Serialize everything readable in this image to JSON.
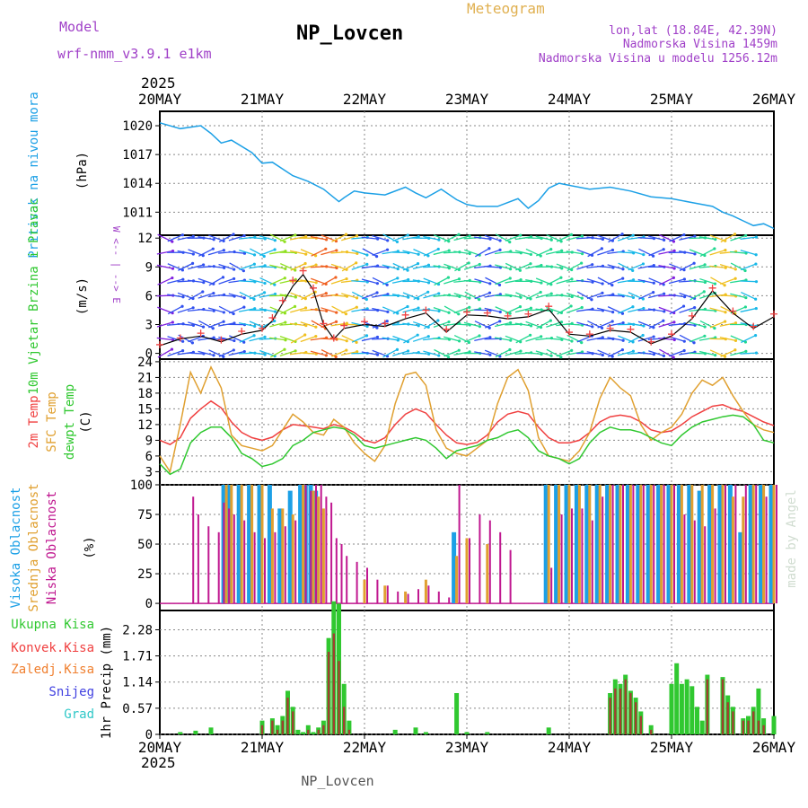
{
  "header": {
    "model_label": "Model",
    "model_name": "wrf-nmm_v3.9.1 e1km",
    "title": "NP_Lovcen",
    "subtitle": "Meteogram",
    "location": "lon,lat (18.84E, 42.39N)",
    "altitude": "Nadmorska Visina 1459m",
    "model_altitude": "Nadmorska Visina u modelu 1256.12m",
    "year_top": "2025",
    "footer_station": "NP_Lovcen",
    "watermark": "made by Angel"
  },
  "colors": {
    "pressure": "#1ca0e6",
    "temp2m": "#f04040",
    "sfc_temp": "#e0a030",
    "dewpt": "#30c830",
    "cloud_high": "#1ca0e6",
    "cloud_mid": "#e0a030",
    "cloud_low": "#c01890",
    "precip_total": "#30c830",
    "precip_conv": "#f04040",
    "text_purple": "#a040c8",
    "text_gold": "#e0b050"
  },
  "chart_data": [
    {
      "type": "line",
      "panel": "pressure",
      "ylabel": "Pritisak na nivou mora",
      "unit": "(hPa)",
      "ylim": [
        1008.6,
        1021.5
      ],
      "yticks": [
        1011,
        1014,
        1017,
        1020
      ],
      "x_day": [
        0,
        0.2,
        0.4,
        0.5,
        0.6,
        0.7,
        0.9,
        1.0,
        1.1,
        1.3,
        1.45,
        1.6,
        1.75,
        1.8,
        1.9,
        2.0,
        2.2,
        2.4,
        2.5,
        2.6,
        2.75,
        2.9,
        3.0,
        3.1,
        3.3,
        3.5,
        3.6,
        3.7,
        3.8,
        3.9,
        4.0,
        4.2,
        4.4,
        4.6,
        4.8,
        5.0,
        5.2,
        5.4,
        5.5,
        5.6,
        5.7,
        5.8,
        5.9,
        6.0
      ],
      "values": [
        1020.3,
        1019.7,
        1020.0,
        1019.2,
        1018.2,
        1018.5,
        1017.2,
        1016.1,
        1016.2,
        1014.8,
        1014.2,
        1013.4,
        1012.1,
        1012.5,
        1013.2,
        1013.0,
        1012.8,
        1013.6,
        1013.0,
        1012.5,
        1013.4,
        1012.3,
        1011.8,
        1011.6,
        1011.6,
        1012.4,
        1011.4,
        1012.2,
        1013.5,
        1014.0,
        1013.8,
        1013.4,
        1013.6,
        1013.2,
        1012.6,
        1012.4,
        1012.0,
        1011.6,
        1011.0,
        1010.6,
        1010.1,
        1009.6,
        1009.8,
        1009.3
      ]
    },
    {
      "type": "line",
      "panel": "wind",
      "ylabel": "10m Vjetar Brzina i Pravac",
      "unit": "(m/s)",
      "compass": "W <-- | --> E",
      "ylim": [
        -0.6,
        12.3
      ],
      "yticks": [
        0,
        3,
        6,
        9,
        12
      ],
      "x_day": [
        0,
        0.2,
        0.4,
        0.6,
        0.8,
        1.0,
        1.1,
        1.2,
        1.3,
        1.4,
        1.5,
        1.6,
        1.7,
        1.8,
        2.0,
        2.2,
        2.4,
        2.6,
        2.8,
        3.0,
        3.2,
        3.4,
        3.6,
        3.8,
        4.0,
        4.2,
        4.4,
        4.6,
        4.8,
        5.0,
        5.2,
        5.4,
        5.6,
        5.8,
        6.0
      ],
      "values": [
        0.8,
        1.5,
        1.8,
        1.2,
        2.0,
        2.4,
        3.4,
        5.2,
        7.0,
        8.2,
        6.6,
        3.0,
        1.5,
        2.6,
        3.0,
        2.8,
        3.6,
        4.2,
        2.2,
        4.0,
        3.9,
        3.6,
        3.8,
        4.6,
        2.0,
        1.8,
        2.4,
        2.2,
        1.0,
        1.8,
        3.6,
        6.5,
        4.2,
        2.6,
        3.8
      ],
      "arrows": [
        {
          "name": "Vjetar u 10m",
          "values": [
            0.9,
            1.6,
            2.1,
            1.4,
            2.3,
            2.6,
            3.7,
            5.5,
            7.6,
            8.6,
            6.8,
            3.1,
            1.6,
            2.9,
            3.3,
            3.1,
            4.0,
            4.5,
            2.5,
            4.3,
            4.2,
            3.9,
            4.1,
            4.9,
            2.2,
            2.0,
            2.6,
            2.5,
            1.2,
            2.0,
            3.9,
            6.8,
            4.4,
            2.8,
            4.1
          ]
        }
      ]
    },
    {
      "type": "line",
      "panel": "temperature",
      "ylabels": [
        "2m Temp",
        "SFC Temp",
        "dewpt Temp"
      ],
      "unit": "(C)",
      "ylim": [
        0.5,
        24.5
      ],
      "yticks": [
        3,
        6,
        9,
        12,
        15,
        18,
        21,
        24
      ],
      "x_day": [
        0,
        0.1,
        0.2,
        0.3,
        0.4,
        0.5,
        0.6,
        0.7,
        0.8,
        0.9,
        1.0,
        1.1,
        1.2,
        1.3,
        1.4,
        1.5,
        1.6,
        1.7,
        1.8,
        1.9,
        2.0,
        2.1,
        2.2,
        2.3,
        2.4,
        2.5,
        2.6,
        2.7,
        2.8,
        2.9,
        3.0,
        3.1,
        3.2,
        3.3,
        3.4,
        3.5,
        3.6,
        3.7,
        3.8,
        3.9,
        4.0,
        4.1,
        4.2,
        4.3,
        4.4,
        4.5,
        4.6,
        4.7,
        4.8,
        4.9,
        5.0,
        5.1,
        5.2,
        5.3,
        5.4,
        5.5,
        5.6,
        5.7,
        5.8,
        5.9,
        6.0
      ],
      "series": [
        {
          "name": "2m Temp",
          "values": [
            9.0,
            8.2,
            9.5,
            13.2,
            15.0,
            16.5,
            15.2,
            12.5,
            10.5,
            9.5,
            9.0,
            9.6,
            11.0,
            12.0,
            11.8,
            11.5,
            11.2,
            12.0,
            11.5,
            10.5,
            9.0,
            8.5,
            9.5,
            12.0,
            14.0,
            15.0,
            14.2,
            12.0,
            10.0,
            8.5,
            8.2,
            8.6,
            10.0,
            12.5,
            14.0,
            14.5,
            14.0,
            11.5,
            9.5,
            8.5,
            8.5,
            9.0,
            10.5,
            12.5,
            13.5,
            13.8,
            13.5,
            12.5,
            11.0,
            10.5,
            10.8,
            12.0,
            13.5,
            14.5,
            15.5,
            15.8,
            15.0,
            14.5,
            13.5,
            12.5,
            11.8
          ]
        },
        {
          "name": "SFC Temp",
          "values": [
            6.0,
            3.0,
            12.0,
            22.0,
            18.0,
            23.0,
            19.0,
            10.0,
            8.0,
            7.5,
            7.0,
            8.0,
            11.0,
            14.0,
            12.5,
            10.5,
            10.0,
            13.0,
            11.5,
            8.5,
            6.5,
            5.0,
            8.0,
            16.0,
            21.5,
            22.0,
            19.5,
            11.0,
            7.5,
            6.5,
            6.0,
            7.5,
            9.0,
            16.0,
            21.0,
            22.5,
            18.5,
            9.5,
            6.0,
            5.5,
            5.0,
            7.0,
            10.5,
            17.0,
            21.0,
            19.0,
            17.5,
            12.0,
            9.0,
            10.5,
            11.5,
            14.0,
            18.0,
            20.5,
            19.5,
            21.0,
            17.5,
            14.5,
            12.0,
            11.0,
            10.5
          ]
        },
        {
          "name": "dewpt Temp",
          "values": [
            4.5,
            2.5,
            3.5,
            8.5,
            10.5,
            11.5,
            11.5,
            9.5,
            6.5,
            5.5,
            4.0,
            4.5,
            5.5,
            8.0,
            9.0,
            10.5,
            11.0,
            11.5,
            11.2,
            10.0,
            8.0,
            7.5,
            8.0,
            8.5,
            9.0,
            9.5,
            9.0,
            7.5,
            5.5,
            7.0,
            7.5,
            8.0,
            9.0,
            9.5,
            10.5,
            11.0,
            9.5,
            7.0,
            6.0,
            5.5,
            4.5,
            5.5,
            8.5,
            10.5,
            11.5,
            11.0,
            11.0,
            10.5,
            9.5,
            8.5,
            8.0,
            10.0,
            11.5,
            12.5,
            13.0,
            13.5,
            13.8,
            13.5,
            12.0,
            9.0,
            8.5
          ]
        }
      ]
    },
    {
      "type": "bar",
      "panel": "clouds",
      "ylabels": [
        "Visoka Oblacnost",
        "Srednja Oblacnost",
        "Niska Oblacnost"
      ],
      "unit": "(%)",
      "ylim": [
        -6,
        100
      ],
      "yticks": [
        0,
        25,
        50,
        75,
        100
      ],
      "x_day": [
        0.3,
        0.35,
        0.45,
        0.55,
        0.6,
        0.65,
        0.7,
        0.8,
        0.9,
        1.0,
        1.1,
        1.2,
        1.3,
        1.4,
        1.45,
        1.5,
        1.55,
        1.6,
        1.65,
        1.7,
        1.75,
        1.8,
        1.9,
        2.0,
        2.1,
        2.2,
        2.3,
        2.4,
        2.5,
        2.6,
        2.7,
        2.8,
        2.9,
        3.0,
        3.1,
        3.2,
        3.3,
        3.4,
        3.5,
        3.6,
        3.7,
        3.8,
        3.9,
        4.0,
        4.1,
        4.2,
        4.3,
        4.4,
        4.5,
        4.6,
        4.7,
        4.8,
        4.9,
        5.0,
        5.1,
        5.2,
        5.3,
        5.4,
        5.5,
        5.6,
        5.7,
        5.8,
        5.9,
        6.0
      ],
      "series": [
        {
          "name": "Visoka Oblacnost",
          "values": [
            0,
            0,
            0,
            0,
            0,
            100,
            100,
            100,
            100,
            100,
            100,
            80,
            95,
            100,
            100,
            100,
            95,
            0,
            0,
            0,
            0,
            0,
            0,
            0,
            0,
            0,
            0,
            0,
            0,
            0,
            0,
            0,
            60,
            0,
            0,
            0,
            0,
            0,
            0,
            0,
            0,
            100,
            100,
            100,
            100,
            100,
            100,
            100,
            100,
            100,
            100,
            100,
            100,
            100,
            100,
            100,
            95,
            100,
            100,
            100,
            60,
            100,
            100,
            100
          ]
        },
        {
          "name": "Srednja Oblacnost",
          "values": [
            0,
            0,
            0,
            0,
            0,
            100,
            100,
            100,
            100,
            100,
            80,
            80,
            75,
            100,
            0,
            95,
            90,
            80,
            0,
            0,
            0,
            0,
            0,
            20,
            0,
            15,
            0,
            10,
            0,
            20,
            0,
            0,
            40,
            55,
            0,
            50,
            0,
            0,
            0,
            0,
            0,
            100,
            100,
            100,
            100,
            100,
            100,
            100,
            100,
            100,
            100,
            100,
            100,
            100,
            100,
            100,
            100,
            100,
            100,
            90,
            90,
            100,
            100,
            100
          ]
        },
        {
          "name": "Niska Oblacnost",
          "values": [
            90,
            75,
            65,
            60,
            85,
            80,
            75,
            70,
            60,
            55,
            60,
            65,
            70,
            100,
            95,
            100,
            100,
            90,
            85,
            55,
            50,
            40,
            35,
            30,
            20,
            15,
            10,
            8,
            12,
            15,
            10,
            5,
            100,
            55,
            75,
            70,
            60,
            45,
            0,
            0,
            0,
            30,
            75,
            80,
            80,
            70,
            90,
            100,
            100,
            100,
            100,
            100,
            100,
            100,
            75,
            70,
            65,
            80,
            100,
            100,
            100,
            100,
            90,
            100
          ]
        }
      ]
    },
    {
      "type": "bar",
      "panel": "precip",
      "ylabels": [
        "Ukupna Kisa",
        "Konvek.Kisa",
        "Zaledj.Kisa",
        "Snijeg",
        "Grad"
      ],
      "unit": "1hr Precip (mm)",
      "ylim": [
        0,
        2.7
      ],
      "yticks": [
        0,
        0.57,
        1.14,
        1.71,
        2.28
      ],
      "x_day": [
        0.2,
        0.35,
        0.5,
        1.0,
        1.1,
        1.15,
        1.2,
        1.25,
        1.3,
        1.35,
        1.4,
        1.45,
        1.5,
        1.55,
        1.6,
        1.65,
        1.7,
        1.75,
        1.8,
        1.85,
        2.3,
        2.5,
        2.6,
        2.9,
        3.0,
        3.2,
        3.8,
        4.4,
        4.45,
        4.5,
        4.55,
        4.6,
        4.65,
        4.7,
        4.8,
        5.0,
        5.05,
        5.1,
        5.15,
        5.2,
        5.25,
        5.3,
        5.35,
        5.5,
        5.55,
        5.6,
        5.7,
        5.75,
        5.8,
        5.85,
        5.9,
        6.0
      ],
      "series": [
        {
          "name": "Ukupna Kisa",
          "values": [
            0.05,
            0.08,
            0.15,
            0.3,
            0.35,
            0.2,
            0.4,
            0.95,
            0.6,
            0.1,
            0.05,
            0.2,
            0.05,
            0.15,
            0.3,
            2.1,
            2.9,
            2.85,
            1.1,
            0.3,
            0.1,
            0.15,
            0.05,
            0.9,
            0.05,
            0.05,
            0.15,
            0.9,
            1.2,
            1.1,
            1.3,
            0.95,
            0.8,
            0.5,
            0.2,
            1.1,
            1.55,
            1.1,
            1.2,
            1.05,
            0.6,
            0.3,
            1.3,
            1.25,
            0.85,
            0.6,
            0.35,
            0.4,
            0.6,
            1.0,
            0.35,
            0.4
          ]
        },
        {
          "name": "Konvek.Kisa",
          "values": [
            0,
            0,
            0,
            0.2,
            0.3,
            0.1,
            0.3,
            0.8,
            0.5,
            0,
            0,
            0.1,
            0,
            0.1,
            0.2,
            1.8,
            2.2,
            1.6,
            0.6,
            0.1,
            0,
            0,
            0,
            0,
            0,
            0,
            0,
            0.8,
            1.0,
            1.0,
            1.2,
            0.9,
            0.7,
            0.4,
            0.1,
            0,
            0,
            0,
            0,
            0,
            0,
            0,
            1.2,
            1.2,
            0.7,
            0.5,
            0.3,
            0.3,
            0.5,
            0.3,
            0.2,
            0
          ]
        }
      ]
    }
  ],
  "x_axis": {
    "ticks": [
      "20MAY",
      "21MAY",
      "22MAY",
      "23MAY",
      "24MAY",
      "25MAY",
      "26MAY"
    ],
    "year": "2025"
  }
}
